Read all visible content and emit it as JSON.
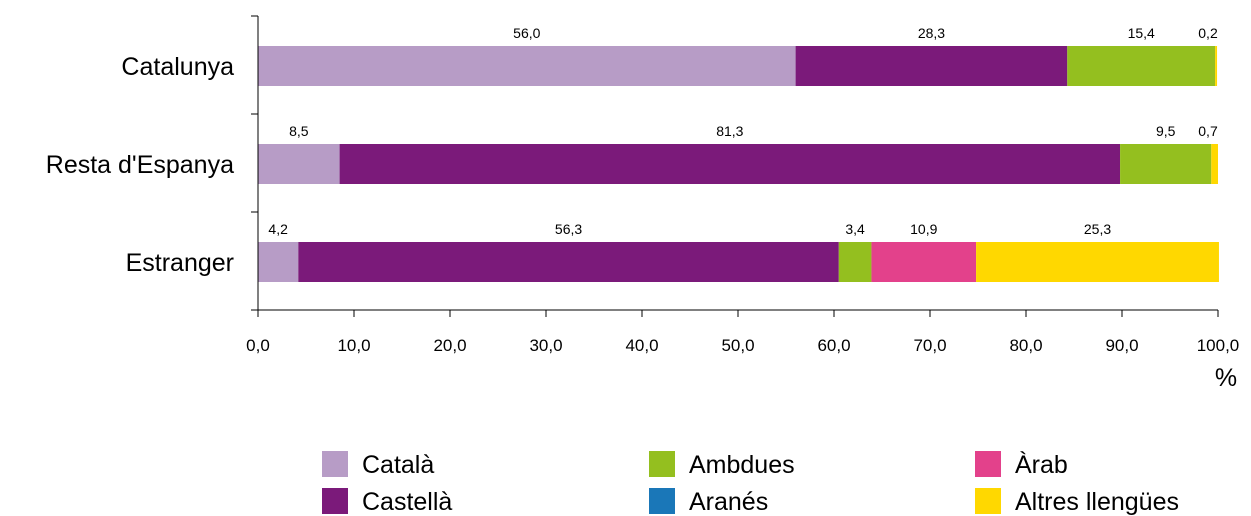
{
  "chart_data": {
    "type": "bar",
    "orientation": "horizontal",
    "stacked": true,
    "categories": [
      "Catalunya",
      "Resta d'Espanya",
      "Estranger"
    ],
    "series": [
      {
        "name": "Català",
        "color": "#b79cc6",
        "values": [
          56.0,
          8.5,
          4.2
        ],
        "labels": [
          "56,0",
          "8,5",
          "4,2"
        ]
      },
      {
        "name": "Castellà",
        "color": "#7b1a7a",
        "values": [
          28.3,
          81.3,
          56.3
        ],
        "labels": [
          "28,3",
          "81,3",
          "56,3"
        ]
      },
      {
        "name": "Ambdues",
        "color": "#94bf1f",
        "values": [
          15.4,
          9.5,
          3.4
        ],
        "labels": [
          "15,4",
          "9,5",
          "3,4"
        ]
      },
      {
        "name": "Aranés",
        "color": "#1a77b8",
        "values": [
          0,
          0,
          0
        ],
        "labels": [
          "",
          "",
          ""
        ]
      },
      {
        "name": "Àrab",
        "color": "#e3418b",
        "values": [
          0,
          0,
          10.9
        ],
        "labels": [
          "",
          "",
          "10,9"
        ]
      },
      {
        "name": "Altres llengües",
        "color": "#ffd800",
        "values": [
          0.2,
          0.7,
          25.3
        ],
        "labels": [
          "0,2",
          "0,7",
          "25,3"
        ]
      }
    ],
    "xlim": [
      0,
      100
    ],
    "xticks": [
      "0,0",
      "10,0",
      "20,0",
      "30,0",
      "40,0",
      "50,0",
      "60,0",
      "70,0",
      "80,0",
      "90,0",
      "100,0"
    ],
    "xlabel": "%",
    "grid": false,
    "legend_position": "bottom",
    "legend_order": [
      "Català",
      "Ambdues",
      "Àrab",
      "Castellà",
      "Aranés",
      "Altres llengües"
    ]
  }
}
